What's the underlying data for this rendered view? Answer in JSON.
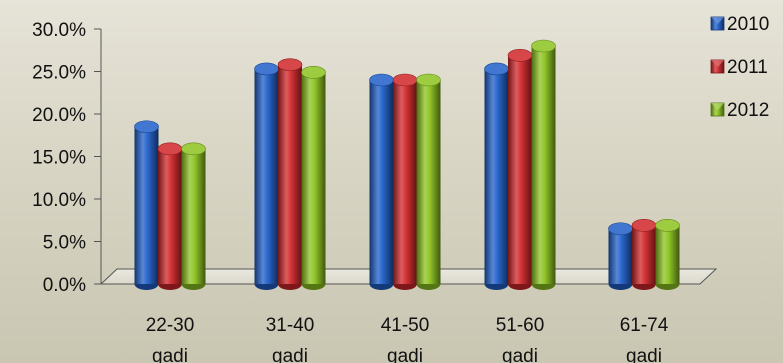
{
  "chart_data": {
    "type": "bar",
    "categories": [
      [
        "22-30",
        "gadi"
      ],
      [
        "31-40",
        "gadi"
      ],
      [
        "41-50",
        "gadi"
      ],
      [
        "51-60",
        "gadi"
      ],
      [
        "61-74",
        "gadi"
      ]
    ],
    "series": [
      {
        "name": "2010",
        "color": "#1f5fc9",
        "values": [
          18.5,
          25.3,
          24.0,
          25.3,
          6.5
        ]
      },
      {
        "name": "2011",
        "color": "#d0272a",
        "values": [
          15.9,
          25.8,
          24.0,
          26.9,
          6.9
        ]
      },
      {
        "name": "2012",
        "color": "#8cc31f",
        "values": [
          15.9,
          24.9,
          24.0,
          28.0,
          6.9
        ]
      }
    ],
    "yticks": [
      "0.0%",
      "5.0%",
      "10.0%",
      "15.0%",
      "20.0%",
      "25.0%",
      "30.0%"
    ],
    "ylim": [
      0,
      30
    ],
    "legend_position": "right"
  }
}
